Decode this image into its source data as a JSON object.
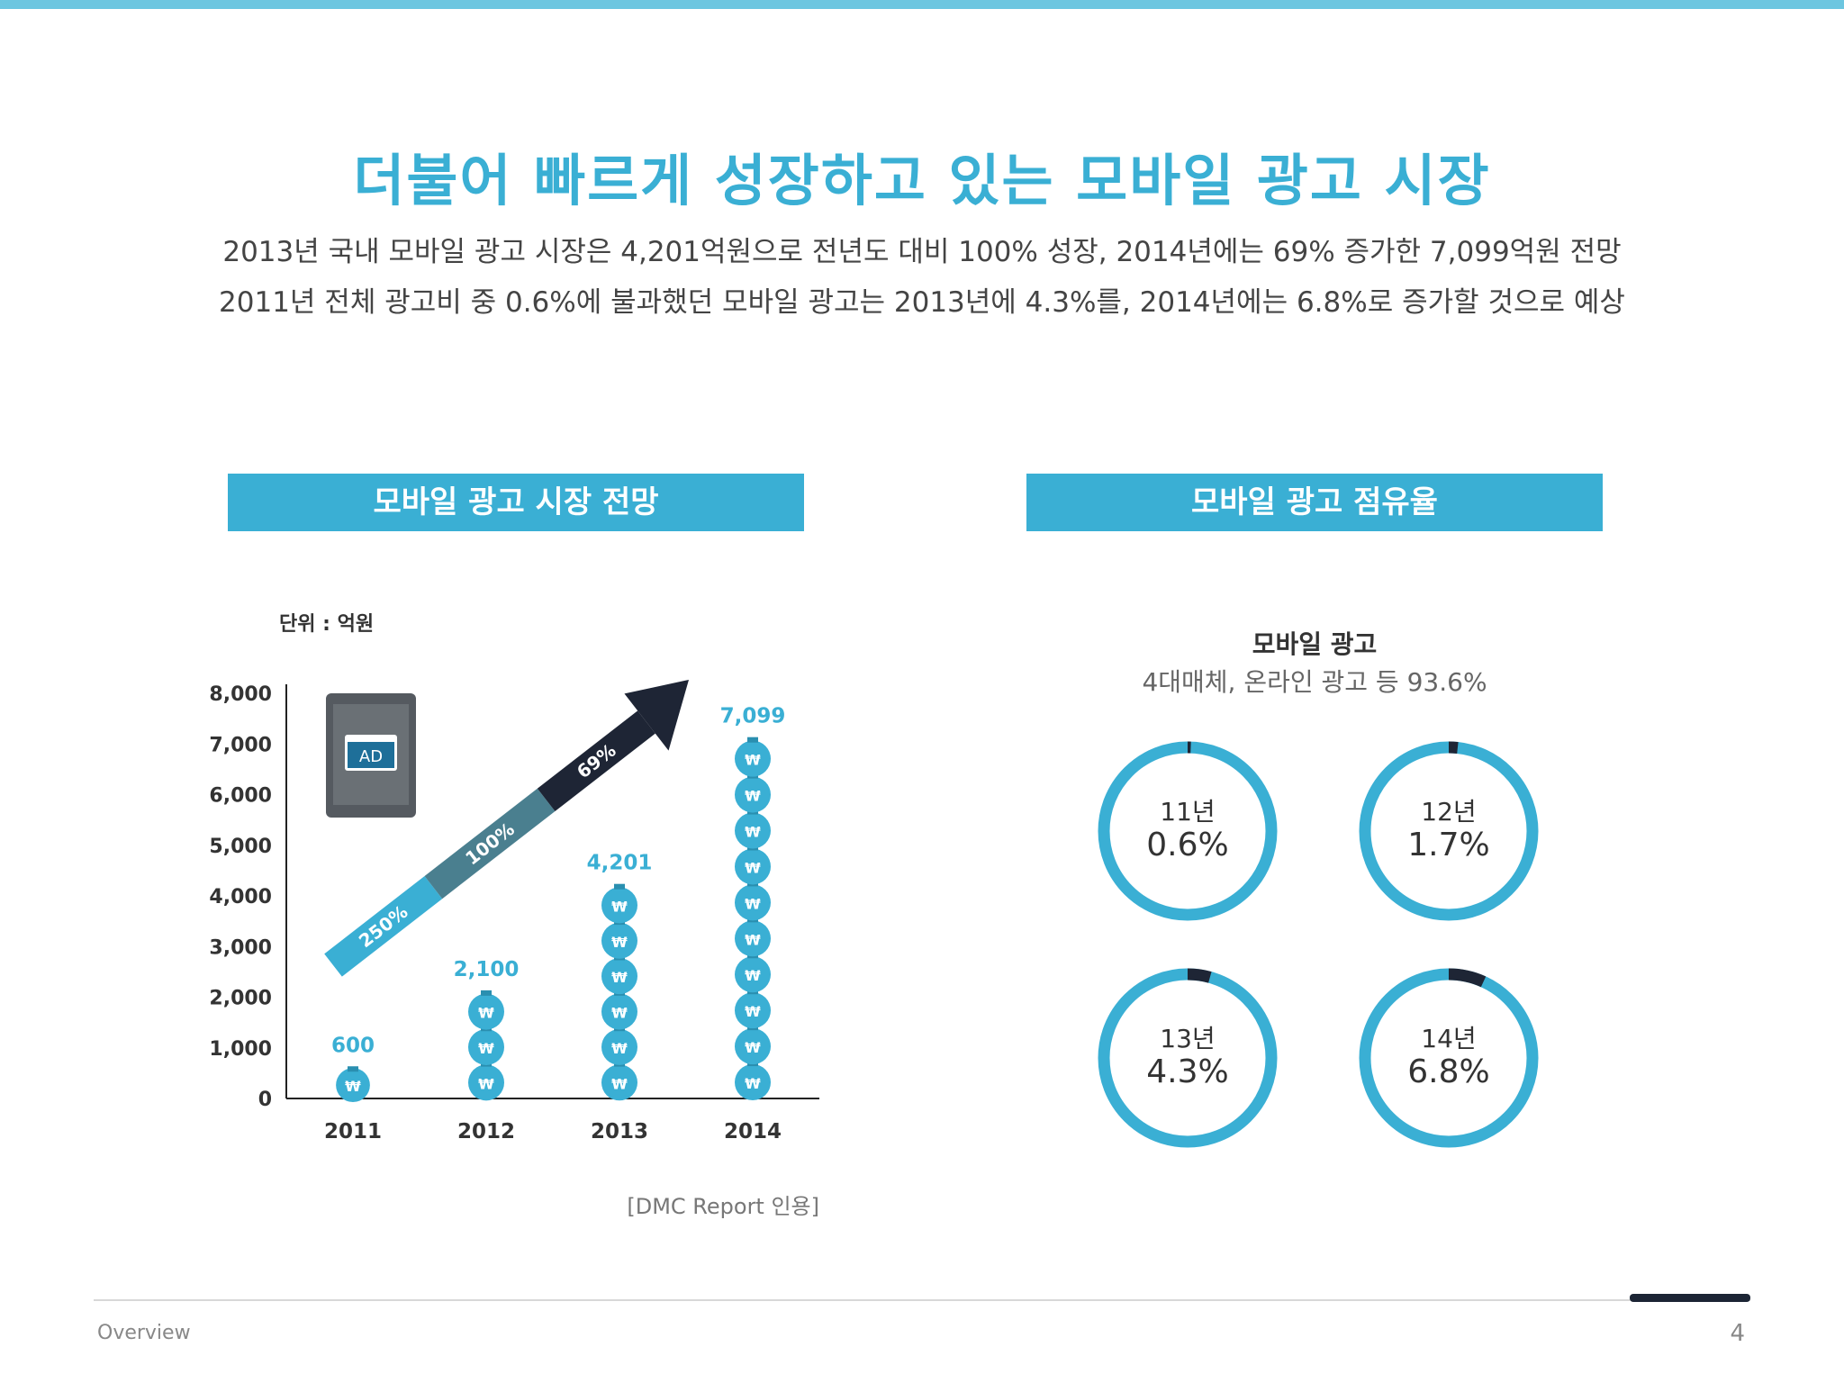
{
  "header": {
    "title": "더불어 빠르게 성장하고 있는 모바일 광고 시장",
    "subtitle_1": "2013년 국내 모바일 광고 시장은 4,201억원으로 전년도 대비 100% 성장, 2014년에는 69% 증가한 7,099억원 전망",
    "subtitle_2": "2011년 전체 광고비 중 0.6%에 불과했던 모바일 광고는 2013년에 4.3%를, 2014년에는 6.8%로 증가할 것으로 예상"
  },
  "sections": {
    "left_title": "모바일 광고 시장 전망",
    "right_title": "모바일 광고 점유율"
  },
  "chart_data": [
    {
      "type": "bar",
      "unit_label": "단위 : 억원",
      "categories": [
        "2011",
        "2012",
        "2013",
        "2014"
      ],
      "values": [
        600,
        2100,
        4201,
        7099
      ],
      "value_labels": [
        "600",
        "2,100",
        "4,201",
        "7,099"
      ],
      "ylim": [
        0,
        8000
      ],
      "yticks": [
        0,
        1000,
        2000,
        3000,
        4000,
        5000,
        6000,
        7000,
        8000
      ],
      "ytick_labels": [
        "0",
        "1,000",
        "2,000",
        "3,000",
        "4,000",
        "5,000",
        "6,000",
        "7,000",
        "8,000"
      ],
      "growth_labels": [
        "250%",
        "100%",
        "69%"
      ],
      "ad_icon_label": "AD",
      "currency_symbol": "₩",
      "colors": {
        "bar": "#3aafd4",
        "arrow_1": "#3aafd4",
        "arrow_2": "#4a7f8f",
        "arrow_3": "#1e2535",
        "tablet": "#555a60",
        "ad": "#1e6f99"
      }
    },
    {
      "type": "pie",
      "title": "모바일 광고",
      "subtitle": "4대매체, 온라인 광고 등 93.6%",
      "items": [
        {
          "label": "11년",
          "value": 0.6,
          "value_label": "0.6%"
        },
        {
          "label": "12년",
          "value": 1.7,
          "value_label": "1.7%"
        },
        {
          "label": "13년",
          "value": 4.3,
          "value_label": "4.3%"
        },
        {
          "label": "14년",
          "value": 6.8,
          "value_label": "6.8%"
        }
      ],
      "colors": {
        "ring": "#3aafd4",
        "share": "#1e2535"
      }
    }
  ],
  "source": "[DMC Report 인용]",
  "footer": {
    "section": "Overview",
    "page": "4"
  }
}
